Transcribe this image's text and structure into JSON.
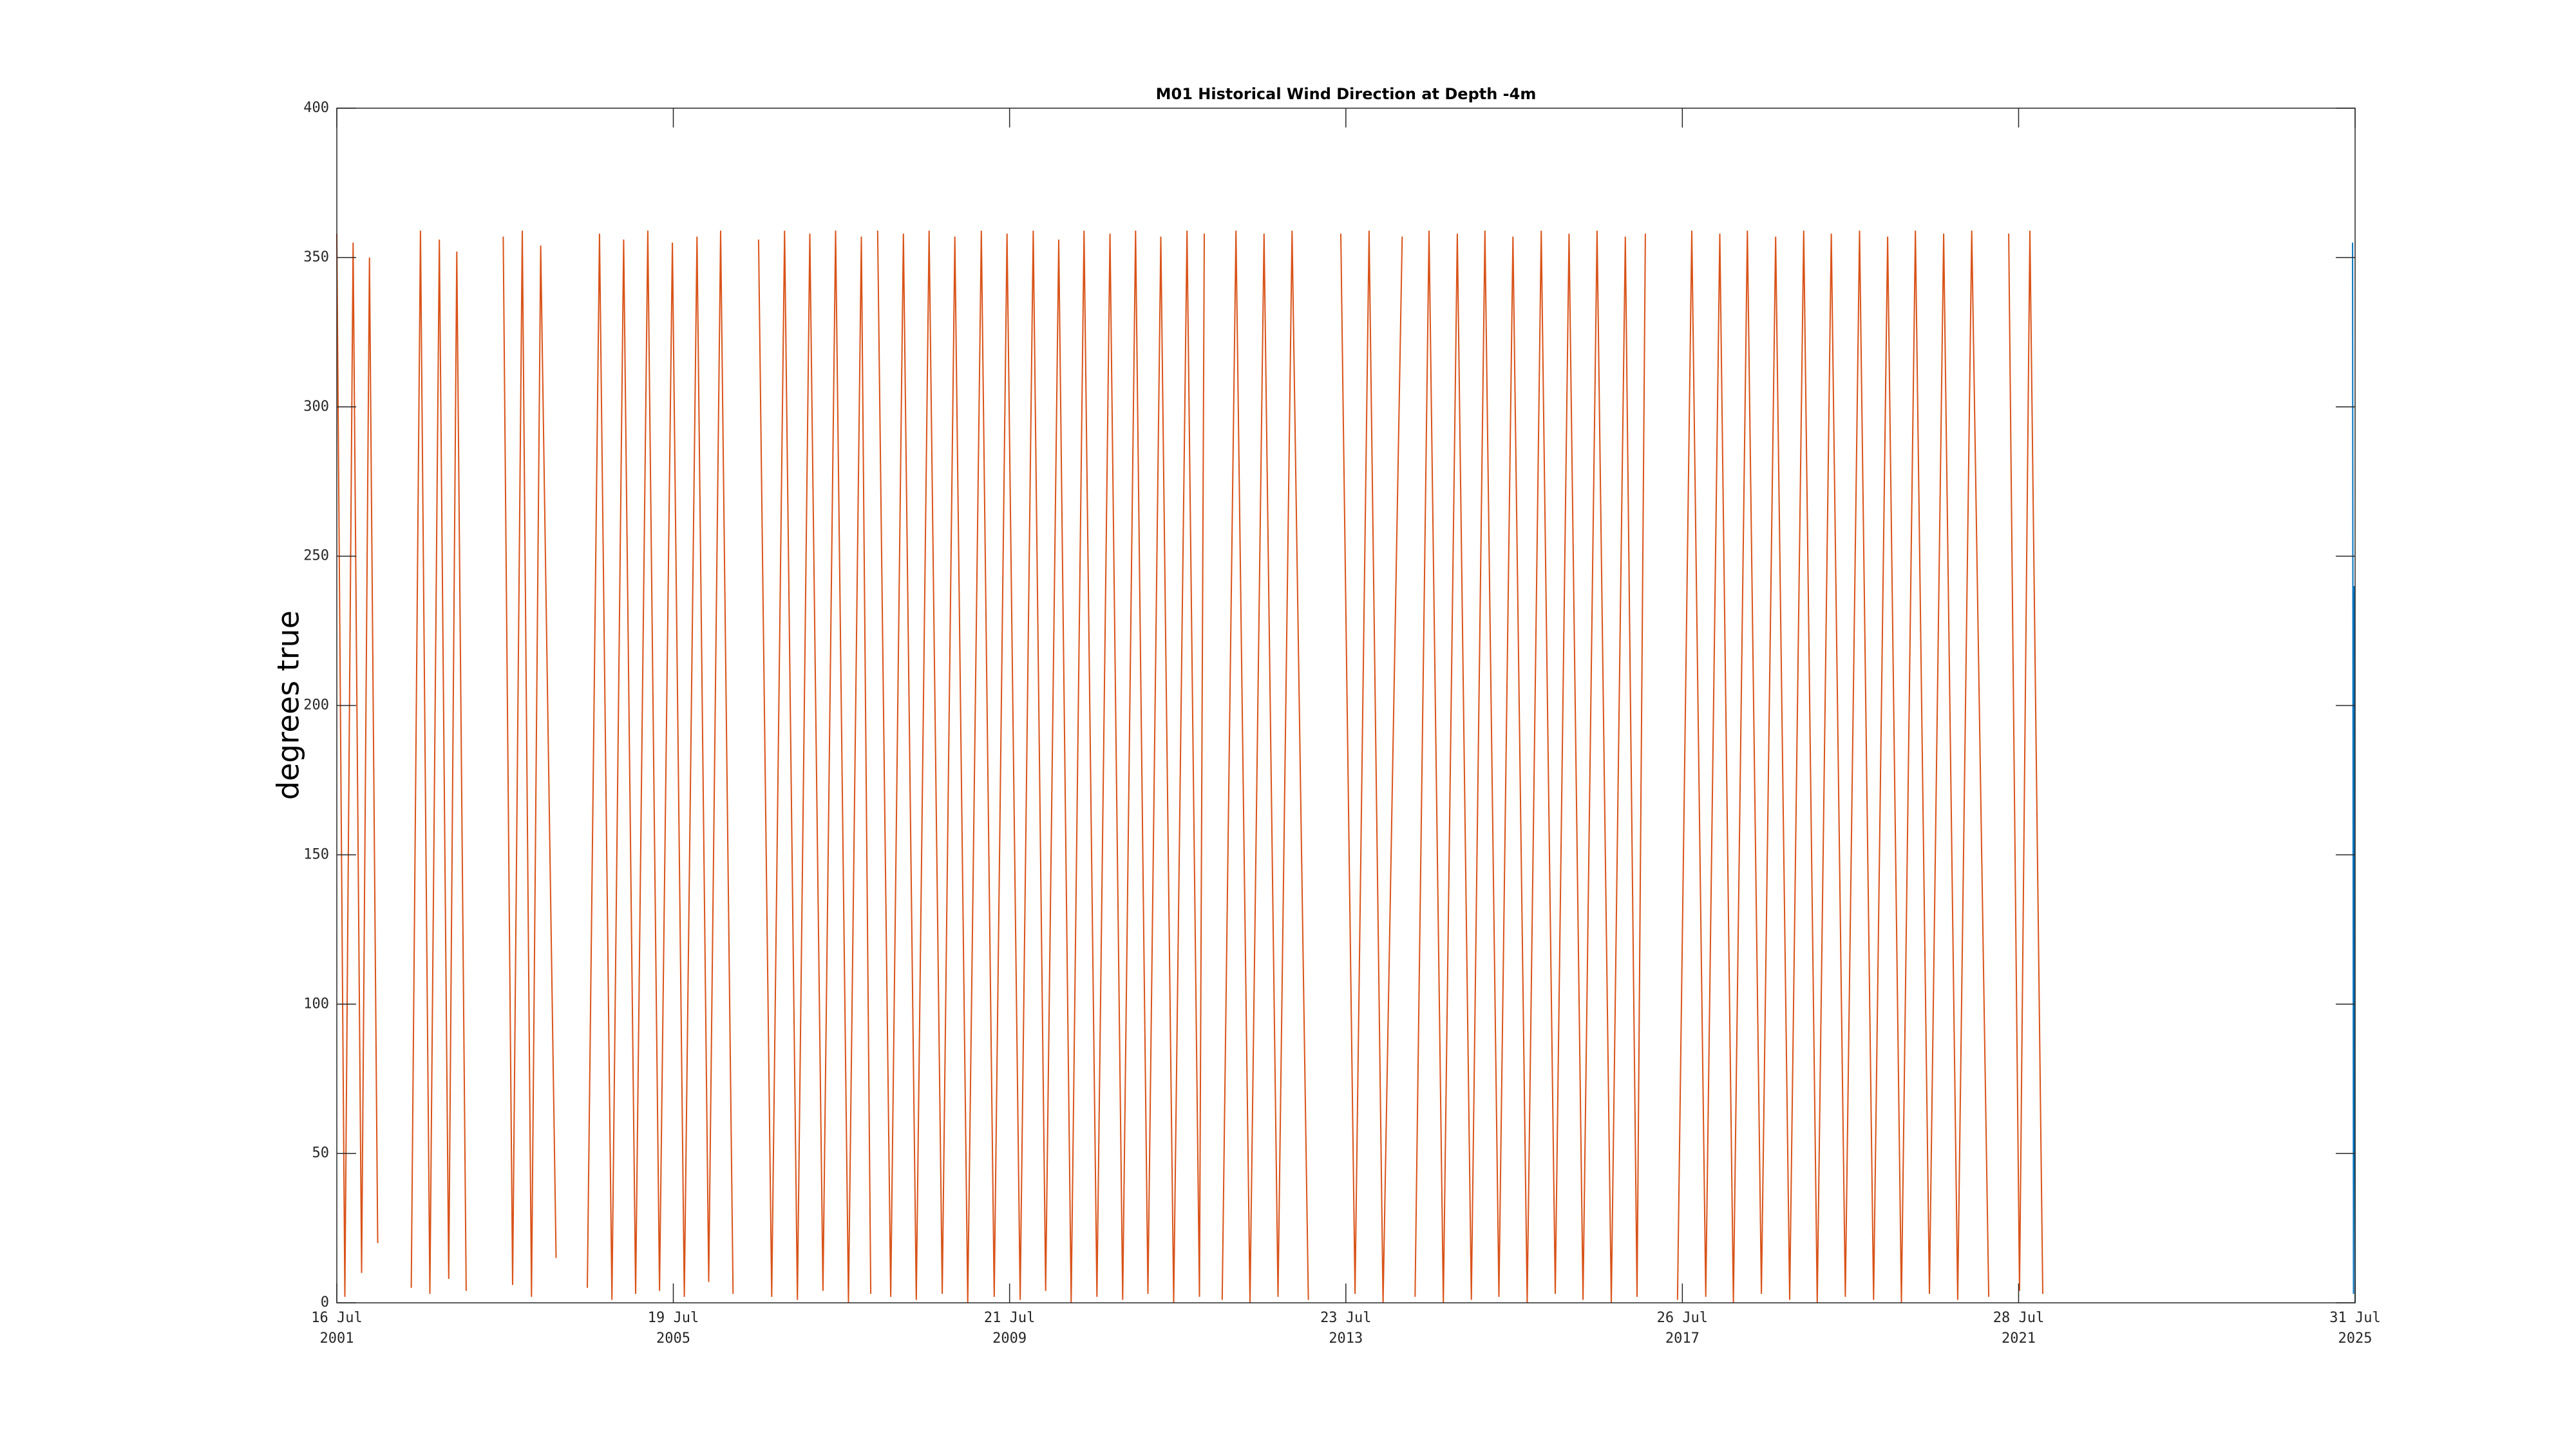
{
  "chart_data": {
    "type": "line",
    "title": "M01 Historical Wind Direction at Depth -4m",
    "y_label": "degrees true",
    "xlim": [
      "2001-07-16",
      "2025-07-31"
    ],
    "xticks": [
      {
        "value": "2001-07-16",
        "label": "16 Jul\n2001"
      },
      {
        "value": "2005-07-19",
        "label": "19 Jul\n2005"
      },
      {
        "value": "2009-07-21",
        "label": "21 Jul\n2009"
      },
      {
        "value": "2013-07-23",
        "label": "23 Jul\n2013"
      },
      {
        "value": "2017-07-26",
        "label": "26 Jul\n2017"
      },
      {
        "value": "2021-07-28",
        "label": "28 Jul\n2021"
      },
      {
        "value": "2025-07-31",
        "label": "31 Jul\n2025"
      }
    ],
    "ylim": [
      0,
      400
    ],
    "yticks": [
      0,
      50,
      100,
      150,
      200,
      250,
      300,
      350,
      400
    ],
    "grid": false,
    "series": [
      {
        "color": "#d95319",
        "x": [
          "2001-07-16",
          "2001-08-20",
          "2001-09-25",
          "2001-11-01",
          "2001-12-05",
          "2002-01-10",
          "2002-03-01",
          "2002-06-05",
          "2002-07-15",
          "2002-08-25",
          "2002-10-05",
          "2002-11-15",
          "2002-12-20",
          "2003-01-30",
          "2003-04-15",
          "2003-07-10",
          "2003-08-20",
          "2003-10-01",
          "2003-11-10",
          "2003-12-20",
          "2004-02-25",
          "2004-04-20",
          "2004-07-10",
          "2004-09-01",
          "2004-10-25",
          "2004-12-15",
          "2005-02-05",
          "2005-03-30",
          "2005-05-20",
          "2005-07-15",
          "2005-09-05",
          "2005-10-30",
          "2005-12-20",
          "2006-02-10",
          "2006-04-05",
          "2006-05-15",
          "2006-07-25",
          "2006-09-20",
          "2006-11-15",
          "2007-01-10",
          "2007-03-05",
          "2007-05-01",
          "2007-06-25",
          "2007-08-20",
          "2007-10-15",
          "2007-11-25",
          "2007-12-10",
          "2007-12-25",
          "2008-02-20",
          "2008-04-15",
          "2008-06-10",
          "2008-08-05",
          "2008-10-01",
          "2008-11-25",
          "2009-01-20",
          "2009-03-20",
          "2009-05-15",
          "2009-07-10",
          "2009-09-05",
          "2009-11-01",
          "2009-12-25",
          "2010-02-20",
          "2010-04-15",
          "2010-06-10",
          "2010-08-05",
          "2010-10-01",
          "2010-11-25",
          "2011-01-20",
          "2011-03-15",
          "2011-05-10",
          "2011-07-05",
          "2011-09-01",
          "2011-10-25",
          "2011-11-15",
          "2011-12-15",
          "2012-02-01",
          "2012-04-01",
          "2012-06-01",
          "2012-08-01",
          "2012-10-01",
          "2012-12-01",
          "2013-02-10",
          "2013-04-15",
          "2013-07-01",
          "2013-09-01",
          "2013-11-01",
          "2014-01-01",
          "2014-03-25",
          "2014-04-10",
          "2014-05-20",
          "2014-07-20",
          "2014-09-20",
          "2014-11-20",
          "2015-01-20",
          "2015-03-20",
          "2015-05-20",
          "2015-07-20",
          "2015-09-20",
          "2015-11-20",
          "2016-01-20",
          "2016-03-20",
          "2016-05-20",
          "2016-07-20",
          "2016-09-20",
          "2016-11-20",
          "2017-01-10",
          "2017-02-15",
          "2017-04-15",
          "2017-07-05",
          "2017-09-05",
          "2017-11-05",
          "2018-01-05",
          "2018-03-05",
          "2018-05-05",
          "2018-07-05",
          "2018-09-05",
          "2018-11-05",
          "2019-01-05",
          "2019-03-05",
          "2019-05-05",
          "2019-07-05",
          "2019-09-05",
          "2019-11-05",
          "2020-01-05",
          "2020-03-05",
          "2020-05-05",
          "2020-07-05",
          "2020-09-05",
          "2020-11-05",
          "2021-01-05",
          "2021-03-20",
          "2021-05-01",
          "2021-06-15",
          "2021-08-01",
          "2021-09-15",
          "2021-11-10"
        ],
        "values": [
          358,
          2,
          355,
          10,
          350,
          20,
          null,
          5,
          359,
          3,
          356,
          8,
          352,
          4,
          null,
          357,
          6,
          359,
          2,
          354,
          15,
          null,
          5,
          358,
          1,
          356,
          3,
          359,
          4,
          355,
          2,
          357,
          7,
          359,
          3,
          null,
          356,
          2,
          359,
          1,
          358,
          4,
          359,
          0,
          357,
          3,
          null,
          359,
          2,
          358,
          1,
          359,
          3,
          357,
          0,
          359,
          2,
          358,
          1,
          359,
          4,
          356,
          0,
          359,
          2,
          358,
          1,
          359,
          3,
          357,
          0,
          359,
          2,
          358,
          null,
          1,
          359,
          0,
          358,
          2,
          359,
          1,
          null,
          358,
          3,
          359,
          0,
          357,
          null,
          2,
          359,
          0,
          358,
          1,
          359,
          2,
          357,
          0,
          359,
          3,
          358,
          1,
          359,
          0,
          357,
          2,
          358,
          null,
          1,
          359,
          2,
          358,
          0,
          359,
          3,
          357,
          1,
          359,
          0,
          358,
          2,
          359,
          1,
          357,
          0,
          359,
          3,
          358,
          1,
          359,
          2,
          null,
          358,
          4,
          359,
          3
        ]
      },
      {
        "color": "#0072bd",
        "x": [
          "2025-07-20",
          "2025-07-24",
          "2025-07-27",
          "2025-07-31"
        ],
        "values": [
          355,
          3,
          240,
          0
        ]
      }
    ]
  }
}
